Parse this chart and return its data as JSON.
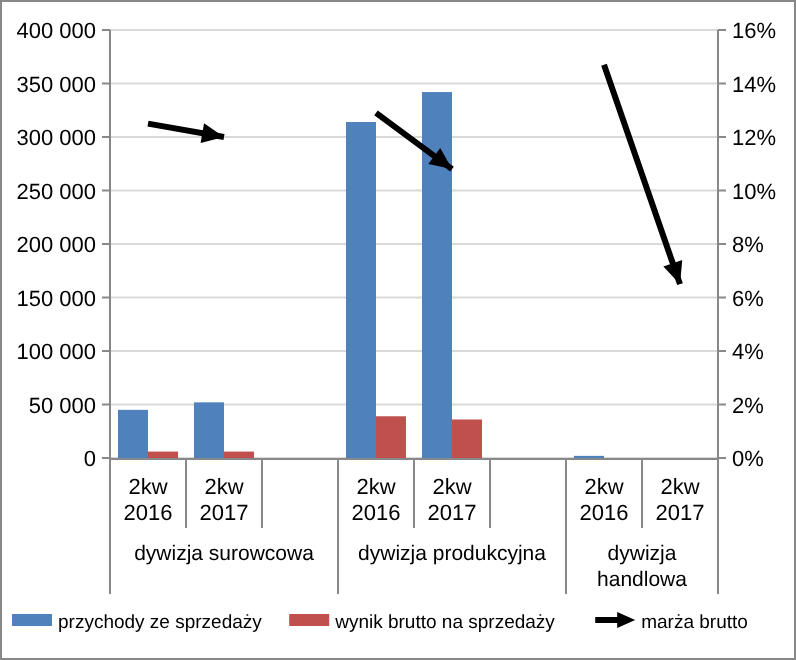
{
  "chart_data": {
    "type": "bar",
    "categories": [
      "2kw 2016",
      "2kw 2017",
      null,
      "2kw 2016",
      "2kw 2017",
      null,
      "2kw 2016",
      "2kw 2017"
    ],
    "series": [
      {
        "name": "przychody ze sprzedaży",
        "color": "#4f81bd",
        "values": [
          45000,
          52000,
          null,
          314000,
          342000,
          null,
          2000,
          0
        ]
      },
      {
        "name": "wynik brutto na sprzedaży",
        "color": "#c0504d",
        "values": [
          6000,
          6000,
          null,
          39000,
          36000,
          null,
          0,
          0
        ]
      },
      {
        "name": "marża brutto",
        "type": "line",
        "axis": "y2",
        "color": "#000000",
        "values": [
          12.5,
          12.0,
          null,
          12.9,
          10.8,
          null,
          14.7,
          6.5
        ]
      }
    ],
    "annotations": [
      "dywizja surowcowa",
      "dywizja produkcyjna",
      "dywizja handlowa"
    ],
    "ylim": [
      0,
      400000
    ],
    "yticks": [
      {
        "value": 0,
        "label": "0"
      },
      {
        "value": 50000,
        "label": "50 000"
      },
      {
        "value": 100000,
        "label": "100 000"
      },
      {
        "value": 150000,
        "label": "150 000"
      },
      {
        "value": 200000,
        "label": "200 000"
      },
      {
        "value": 250000,
        "label": "250 000"
      },
      {
        "value": 300000,
        "label": "300 000"
      },
      {
        "value": 350000,
        "label": "350 000"
      },
      {
        "value": 400000,
        "label": "400 000"
      }
    ],
    "y2lim": [
      0,
      16
    ],
    "y2ticks": [
      {
        "value": 0,
        "label": "0%"
      },
      {
        "value": 2,
        "label": "2%"
      },
      {
        "value": 4,
        "label": "4%"
      },
      {
        "value": 6,
        "label": "6%"
      },
      {
        "value": 8,
        "label": "8%"
      },
      {
        "value": 10,
        "label": "10%"
      },
      {
        "value": 12,
        "label": "12%"
      },
      {
        "value": 14,
        "label": "14%"
      },
      {
        "value": 16,
        "label": "16%"
      }
    ],
    "grid": "y",
    "legend": "bottom"
  }
}
